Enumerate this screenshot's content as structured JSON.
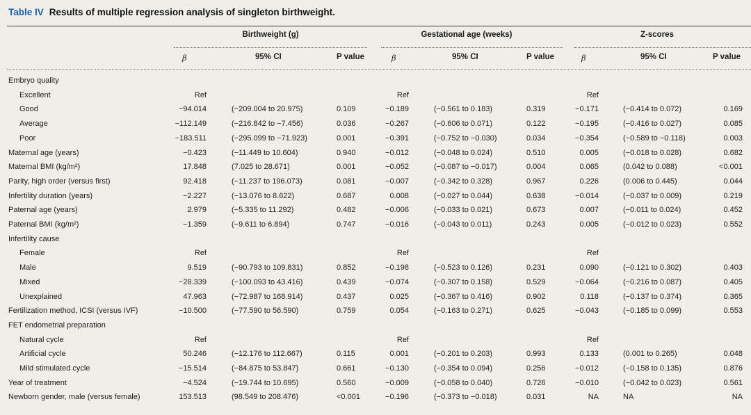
{
  "table": {
    "number": "Table IV",
    "title": "Results of multiple regression analysis of singleton birthweight.",
    "groups": [
      "Birthweight (g)",
      "Gestational age (weeks)",
      "Z-scores"
    ],
    "subheaders": {
      "beta": "β",
      "ci": "95% CI",
      "p": "P value"
    },
    "rows": [
      {
        "label": "Embryo quality",
        "indent": false,
        "v": [
          "",
          "",
          "",
          "",
          "",
          "",
          "",
          "",
          ""
        ]
      },
      {
        "label": "Excellent",
        "indent": true,
        "v": [
          "Ref",
          "",
          "",
          "Ref",
          "",
          "",
          "Ref",
          "",
          ""
        ]
      },
      {
        "label": "Good",
        "indent": true,
        "v": [
          "−94.014",
          "(−209.004 to 20.975)",
          "0.109",
          "−0.189",
          "(−0.561 to 0.183)",
          "0.319",
          "−0.171",
          "(−0.414 to 0.072)",
          "0.169"
        ]
      },
      {
        "label": "Average",
        "indent": true,
        "v": [
          "−112.149",
          "(−216.842 to −7.456)",
          "0.036",
          "−0.267",
          "(−0.606 to 0.071)",
          "0.122",
          "−0.195",
          "(−0.416 to 0.027)",
          "0.085"
        ]
      },
      {
        "label": "Poor",
        "indent": true,
        "v": [
          "−183.511",
          "(−295.099 to −71.923)",
          "0.001",
          "−0.391",
          "(−0.752 to −0.030)",
          "0.034",
          "−0.354",
          "(−0.589 to −0.118)",
          "0.003"
        ]
      },
      {
        "label": "Maternal age (years)",
        "indent": false,
        "v": [
          "−0.423",
          "(−11.449 to 10.604)",
          "0.940",
          "−0.012",
          "(−0.048 to 0.024)",
          "0.510",
          "0.005",
          "(−0.018 to 0.028)",
          "0.682"
        ]
      },
      {
        "label": "Maternal BMI (kg/m²)",
        "indent": false,
        "v": [
          "17.848",
          "(7.025 to 28.671)",
          "0.001",
          "−0.052",
          "(−0.087 to −0.017)",
          "0.004",
          "0.065",
          "(0.042 to 0.088)",
          "<0.001"
        ]
      },
      {
        "label": "Parity, high order (versus first)",
        "indent": false,
        "v": [
          "92.418",
          "(−11.237 to 196.073)",
          "0.081",
          "−0.007",
          "(−0.342 to 0.328)",
          "0.967",
          "0.226",
          "(0.006 to 0.445)",
          "0.044"
        ]
      },
      {
        "label": "Infertility duration (years)",
        "indent": false,
        "v": [
          "−2.227",
          "(−13.076 to 8.622)",
          "0.687",
          "0.008",
          "(−0.027 to 0.044)",
          "0.638",
          "−0.014",
          "(−0.037 to 0.009)",
          "0.219"
        ]
      },
      {
        "label": "Paternal age (years)",
        "indent": false,
        "v": [
          "2.979",
          "(−5.335 to 11.292)",
          "0.482",
          "−0.006",
          "(−0.033 to 0.021)",
          "0.673",
          "0.007",
          "(−0.011 to 0.024)",
          "0.452"
        ]
      },
      {
        "label": "Paternal BMI (kg/m²)",
        "indent": false,
        "v": [
          "−1.359",
          "(−9.611 to 6.894)",
          "0.747",
          "−0.016",
          "(−0.043 to 0.011)",
          "0.243",
          "0.005",
          "(−0.012 to 0.023)",
          "0.552"
        ]
      },
      {
        "label": "Infertility cause",
        "indent": false,
        "v": [
          "",
          "",
          "",
          "",
          "",
          "",
          "",
          "",
          ""
        ]
      },
      {
        "label": "Female",
        "indent": true,
        "v": [
          "Ref",
          "",
          "",
          "Ref",
          "",
          "",
          "Ref",
          "",
          ""
        ]
      },
      {
        "label": "Male",
        "indent": true,
        "v": [
          "9.519",
          "(−90.793 to 109.831)",
          "0.852",
          "−0.198",
          "(−0.523 to 0.126)",
          "0.231",
          "0.090",
          "(−0.121 to 0.302)",
          "0.403"
        ]
      },
      {
        "label": "Mixed",
        "indent": true,
        "v": [
          "−28.339",
          "(−100.093 to 43.416)",
          "0.439",
          "−0.074",
          "(−0.307 to 0.158)",
          "0.529",
          "−0.064",
          "(−0.216 to 0.087)",
          "0.405"
        ]
      },
      {
        "label": "Unexplained",
        "indent": true,
        "v": [
          "47.963",
          "(−72.987 to 168.914)",
          "0.437",
          "0.025",
          "(−0.367 to 0.416)",
          "0.902",
          "0.118",
          "(−0.137 to 0.374)",
          "0.365"
        ]
      },
      {
        "label": "Fertilization method, ICSI (versus IVF)",
        "indent": false,
        "v": [
          "−10.500",
          "(−77.590 to 56.590)",
          "0.759",
          "0.054",
          "(−0.163 to 0.271)",
          "0.625",
          "−0.043",
          "(−0.185 to 0.099)",
          "0.553"
        ]
      },
      {
        "label": "FET endometrial preparation",
        "indent": false,
        "v": [
          "",
          "",
          "",
          "",
          "",
          "",
          "",
          "",
          ""
        ]
      },
      {
        "label": "Natural cycle",
        "indent": true,
        "v": [
          "Ref",
          "",
          "",
          "Ref",
          "",
          "",
          "Ref",
          "",
          ""
        ]
      },
      {
        "label": "Artificial cycle",
        "indent": true,
        "v": [
          "50.246",
          "(−12.176 to 112.667)",
          "0.115",
          "0.001",
          "(−0.201 to 0.203)",
          "0.993",
          "0.133",
          "(0.001 to 0.265)",
          "0.048"
        ]
      },
      {
        "label": "Mild stimulated cycle",
        "indent": true,
        "v": [
          "−15.514",
          "(−84.875 to 53.847)",
          "0.661",
          "−0.130",
          "(−0.354 to 0.094)",
          "0.256",
          "−0.012",
          "(−0.158 to 0.135)",
          "0.876"
        ]
      },
      {
        "label": "Year of treatment",
        "indent": false,
        "v": [
          "−4.524",
          "(−19.744 to 10.695)",
          "0.560",
          "−0.009",
          "(−0.058 to 0.040)",
          "0.726",
          "−0.010",
          "(−0.042 to 0.023)",
          "0.561"
        ]
      },
      {
        "label": "Newborn gender, male (versus female)",
        "indent": false,
        "v": [
          "153.513",
          "(98.549 to 208.476)",
          "<0.001",
          "−0.196",
          "(−0.373 to −0.018)",
          "0.031",
          "NA",
          "NA",
          "NA"
        ]
      }
    ]
  }
}
